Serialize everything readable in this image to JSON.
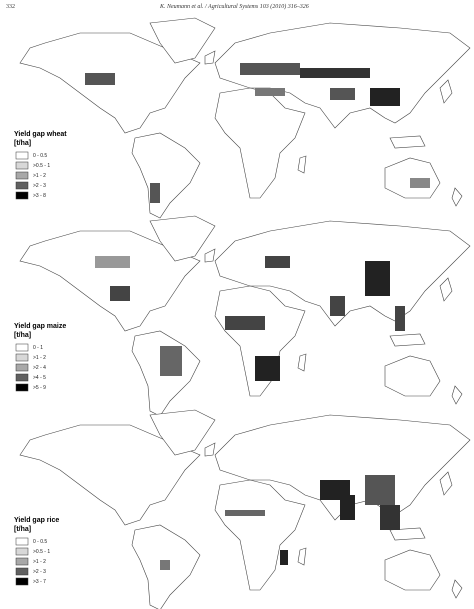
{
  "header": {
    "page_number": "332",
    "citation": "K. Neumann et al. / Agricultural Systems 103 (2010) 316–326"
  },
  "maps": [
    {
      "legend": {
        "title": "Yield gap wheat",
        "unit": "[t/ha]",
        "classes": [
          "0 - 0.5",
          ">0.5 - 1",
          ">1 - 2",
          ">2 - 3",
          ">3 - 8"
        ]
      }
    },
    {
      "legend": {
        "title": "Yield gap maize",
        "unit": "[t/ha]",
        "classes": [
          "0 - 1",
          ">1 - 2",
          ">2 - 4",
          ">4 - 5",
          ">5 - 9"
        ]
      }
    },
    {
      "legend": {
        "title": "Yield gap rice",
        "unit": "[t/ha]",
        "classes": [
          "0 - 0.5",
          ">0.5 - 1",
          ">1 - 2",
          ">2 - 3",
          ">3 - 7"
        ]
      }
    }
  ]
}
